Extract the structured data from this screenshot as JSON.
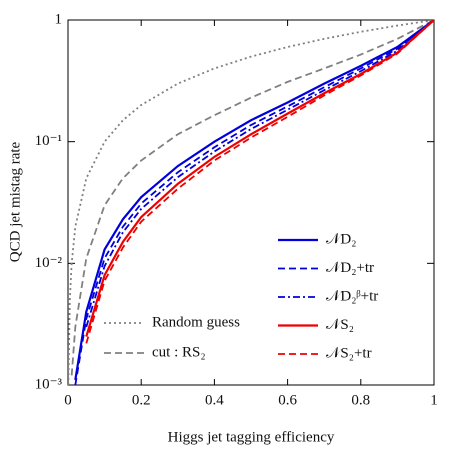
{
  "chart_data": {
    "type": "line",
    "xlabel": "Higgs jet tagging efficiency",
    "ylabel": "QCD jet mistag rate",
    "log_y": true,
    "xlim": [
      0,
      1
    ],
    "ylim": [
      0.001,
      1
    ],
    "xticks": [
      0,
      0.2,
      0.4,
      0.6,
      0.8,
      1
    ],
    "yticks": [
      {
        "value": 0.001,
        "label": "10⁻³"
      },
      {
        "value": 0.01,
        "label": "10⁻²"
      },
      {
        "value": 0.1,
        "label": "10⁻¹"
      },
      1
    ],
    "x": [
      0.001,
      0.005,
      0.01,
      0.02,
      0.05,
      0.1,
      0.15,
      0.2,
      0.3,
      0.4,
      0.5,
      0.6,
      0.7,
      0.8,
      0.9,
      1
    ],
    "series": [
      {
        "name": "Random guess",
        "color": "#808080",
        "style": "dotted",
        "legend_loc": "lower left",
        "values": [
          0.001,
          0.005,
          0.01,
          0.02,
          0.05,
          0.1,
          0.15,
          0.2,
          0.3,
          0.4,
          0.5,
          0.6,
          0.7,
          0.8,
          0.9,
          1
        ]
      },
      {
        "name": "cut : RS₂",
        "color": "#808080",
        "style": "dashed",
        "legend_loc": "lower left",
        "values": [
          null,
          null,
          0.0012,
          0.003,
          0.011,
          0.03,
          0.05,
          0.07,
          0.115,
          0.165,
          0.23,
          0.31,
          0.4,
          0.52,
          0.7,
          1
        ]
      },
      {
        "name": "𝒩D₂",
        "color": "#0000dd",
        "style": "solid",
        "legend_loc": "right",
        "values": [
          null,
          null,
          null,
          0.0011,
          0.004,
          0.013,
          0.023,
          0.035,
          0.063,
          0.1,
          0.15,
          0.21,
          0.3,
          0.42,
          0.6,
          1
        ]
      },
      {
        "name": "𝒩D₂+tr",
        "color": "#0000dd",
        "style": "dashed",
        "legend_loc": "right",
        "values": [
          null,
          null,
          null,
          0.001,
          0.0035,
          0.011,
          0.02,
          0.031,
          0.056,
          0.09,
          0.137,
          0.195,
          0.28,
          0.4,
          0.58,
          1
        ]
      },
      {
        "name": "𝒩D₂ᵝ+tr",
        "color": "#0000dd",
        "style": "dashdot",
        "legend_loc": "right",
        "values": [
          null,
          null,
          null,
          null,
          0.003,
          0.0095,
          0.018,
          0.028,
          0.051,
          0.083,
          0.127,
          0.183,
          0.265,
          0.38,
          0.56,
          1
        ]
      },
      {
        "name": "𝒩S₂",
        "color": "#ee0000",
        "style": "solid",
        "legend_loc": "right",
        "values": [
          null,
          null,
          null,
          null,
          0.0025,
          0.008,
          0.015,
          0.024,
          0.045,
          0.075,
          0.115,
          0.17,
          0.25,
          0.36,
          0.54,
          1
        ]
      },
      {
        "name": "𝒩S₂+tr",
        "color": "#ee0000",
        "style": "dashed",
        "legend_loc": "right",
        "values": [
          null,
          null,
          null,
          null,
          0.0022,
          0.0072,
          0.0135,
          0.022,
          0.041,
          0.07,
          0.108,
          0.16,
          0.24,
          0.35,
          0.53,
          1
        ]
      }
    ]
  }
}
